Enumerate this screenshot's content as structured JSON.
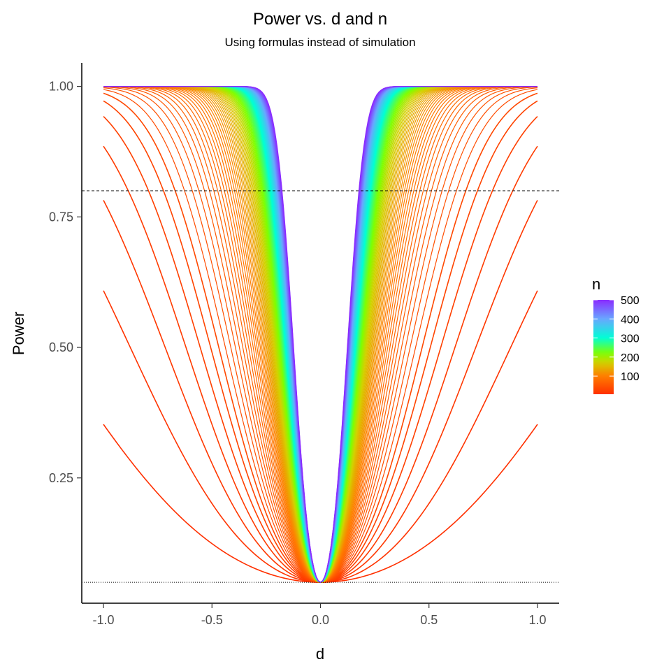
{
  "chart_data": {
    "type": "line",
    "title": "Power vs. d and n",
    "subtitle": "Using formulas instead of simulation",
    "xlabel": "d",
    "ylabel": "Power",
    "xlim": [
      -1.1,
      1.1
    ],
    "ylim": [
      0.01,
      1.045
    ],
    "x_ticks": [
      -1.0,
      -0.5,
      0.0,
      0.5,
      1.0
    ],
    "x_tick_labels": [
      "-1.0",
      "-0.5",
      "0.0",
      "0.5",
      "1.0"
    ],
    "y_ticks": [
      0.25,
      0.5,
      0.75,
      1.0
    ],
    "y_tick_labels": [
      "0.25",
      "0.50",
      "0.75",
      "1.00"
    ],
    "x_range": [
      -1.0,
      1.0
    ],
    "x_step": 0.01,
    "n_range": [
      5,
      500
    ],
    "n_step": 5,
    "alpha": 0.05,
    "reference_lines": [
      {
        "y": 0.8,
        "style": "dashed"
      },
      {
        "y": 0.05,
        "style": "dotted"
      }
    ],
    "grid": false,
    "legend": {
      "title": "n",
      "position": "right",
      "labels": [
        "500",
        "400",
        "300",
        "200",
        "100"
      ],
      "values": [
        500,
        400,
        300,
        200,
        100
      ],
      "color_stops": [
        {
          "n": 5,
          "color": "#ff3000"
        },
        {
          "n": 100,
          "color": "#ff7d00"
        },
        {
          "n": 170,
          "color": "#d4d000"
        },
        {
          "n": 220,
          "color": "#7fff00"
        },
        {
          "n": 300,
          "color": "#00ffd5"
        },
        {
          "n": 400,
          "color": "#69a7ff"
        },
        {
          "n": 500,
          "color": "#8a2bff"
        }
      ]
    }
  }
}
